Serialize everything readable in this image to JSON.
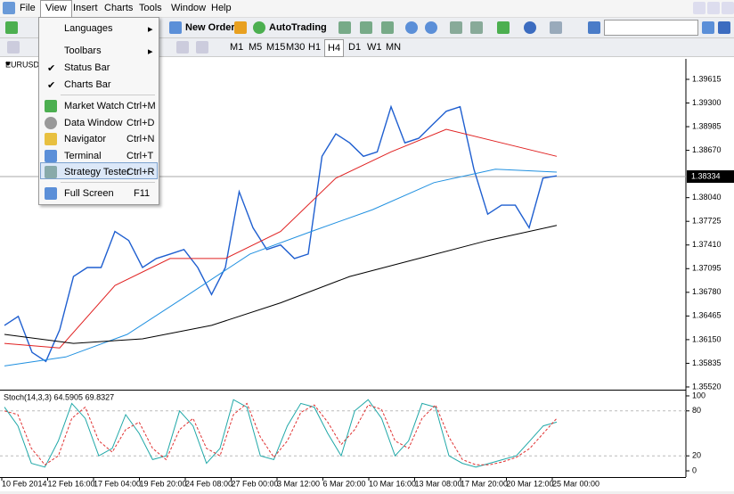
{
  "menu": [
    "File",
    "View",
    "Insert",
    "Charts",
    "Tools",
    "Window",
    "Help"
  ],
  "view_menu": [
    {
      "label": "Languages"
    },
    {
      "label": "Toolbars"
    },
    {
      "label": "Status Bar"
    },
    {
      "label": "Charts Bar"
    },
    {
      "label": "Market Watch",
      "shortcut": "Ctrl+M"
    },
    {
      "label": "Data Window",
      "shortcut": "Ctrl+D"
    },
    {
      "label": "Navigator",
      "shortcut": "Ctrl+N"
    },
    {
      "label": "Terminal",
      "shortcut": "Ctrl+T"
    },
    {
      "label": "Strategy Tester",
      "shortcut": "Ctrl+R"
    },
    {
      "label": "Full Screen",
      "shortcut": "F11"
    }
  ],
  "toolbar": {
    "new_order": "New Order",
    "autotrading": "AutoTrading",
    "timeframes": [
      "M1",
      "M5",
      "M15",
      "M30",
      "H1",
      "H4",
      "D1",
      "W1",
      "MN"
    ]
  },
  "chart_window": {
    "symbol": "EURUSD",
    "current_price": "1.38334",
    "xtick_labels": [
      "10 Feb 2014",
      "12 Feb 16:00",
      "17 Feb 04:00",
      "19 Feb 20:00",
      "24 Feb 08:00",
      "27 Feb 00:00",
      "3 Mar 12:00",
      "6 Mar 20:00",
      "10 Mar 16:00",
      "13 Mar 08:00",
      "17 Mar 20:00",
      "20 Mar 12:00",
      "25 Mar 00:00"
    ]
  },
  "chart_data": [
    {
      "type": "line",
      "ylim": [
        1.35484,
        1.39864
      ],
      "yticks": [
        1.39615,
        {
          "value": 1.393,
          "label": "1.39300"
        },
        1.38985,
        {
          "value": 1.3867,
          "label": "1.38670"
        },
        {
          "value": 1.3804,
          "label": "1.38040"
        },
        1.37725,
        {
          "value": 1.3741,
          "label": "1.37410"
        },
        1.37095,
        {
          "value": 1.3678,
          "label": "1.36780"
        },
        1.36465,
        {
          "value": 1.3615,
          "label": "1.36150"
        },
        1.35835,
        {
          "value": 1.3552,
          "label": "1.35520"
        }
      ],
      "series": [
        {
          "color": "#1f5fd0",
          "values": [
            1.3634,
            1.3646,
            1.3598,
            1.3586,
            1.3628,
            1.3699,
            1.3711,
            1.3711,
            1.3759,
            1.3747,
            1.3711,
            1.3723,
            1.3729,
            1.3735,
            1.3711,
            1.3675,
            1.3711,
            1.3812,
            1.3764,
            1.3735,
            1.3741,
            1.3723,
            1.3729,
            1.3859,
            1.3889,
            1.3877,
            1.3859,
            1.3865,
            1.3925,
            1.3877,
            1.3883,
            1.3901,
            1.3919,
            1.3925,
            1.3842,
            1.3782,
            1.3794,
            1.3794,
            1.3764,
            1.383,
            1.3833
          ]
        },
        {
          "color": "#e02020",
          "values": [
            1.361,
            1.3604,
            1.3687,
            1.3723,
            1.3723,
            1.3759,
            1.383,
            1.3865,
            1.3895,
            1.3877,
            1.3859
          ]
        },
        {
          "color": "#2090e0",
          "values": [
            1.358,
            1.3592,
            1.3622,
            1.3675,
            1.3729,
            1.3759,
            1.3788,
            1.3824,
            1.3842,
            1.3838
          ]
        },
        {
          "color": "#000000",
          "values": [
            1.3622,
            1.361,
            1.3616,
            1.3634,
            1.3664,
            1.3699,
            1.3723,
            1.3747,
            1.3767
          ]
        }
      ]
    },
    {
      "type": "line",
      "title": "Stoch(14,3,3) 64.5905 69.8327",
      "ylim": [
        -8.3,
        107.1
      ],
      "yticks": [
        0,
        20,
        80,
        100
      ],
      "series": [
        {
          "color": "#20a8a8",
          "values": [
            85,
            60,
            10,
            5,
            40,
            90,
            70,
            20,
            30,
            75,
            50,
            15,
            20,
            80,
            60,
            10,
            30,
            95,
            85,
            20,
            15,
            60,
            90,
            85,
            50,
            20,
            80,
            95,
            70,
            20,
            40,
            90,
            85,
            20,
            10,
            5,
            10,
            15,
            20,
            40,
            60,
            65
          ]
        },
        {
          "color": "#e03030",
          "dashed": true,
          "values": [
            80,
            75,
            30,
            8,
            20,
            70,
            85,
            40,
            25,
            55,
            65,
            30,
            15,
            55,
            70,
            30,
            20,
            75,
            90,
            45,
            18,
            40,
            78,
            88,
            65,
            35,
            55,
            88,
            82,
            40,
            30,
            70,
            88,
            45,
            15,
            8,
            8,
            12,
            18,
            30,
            50,
            70
          ]
        }
      ]
    }
  ]
}
